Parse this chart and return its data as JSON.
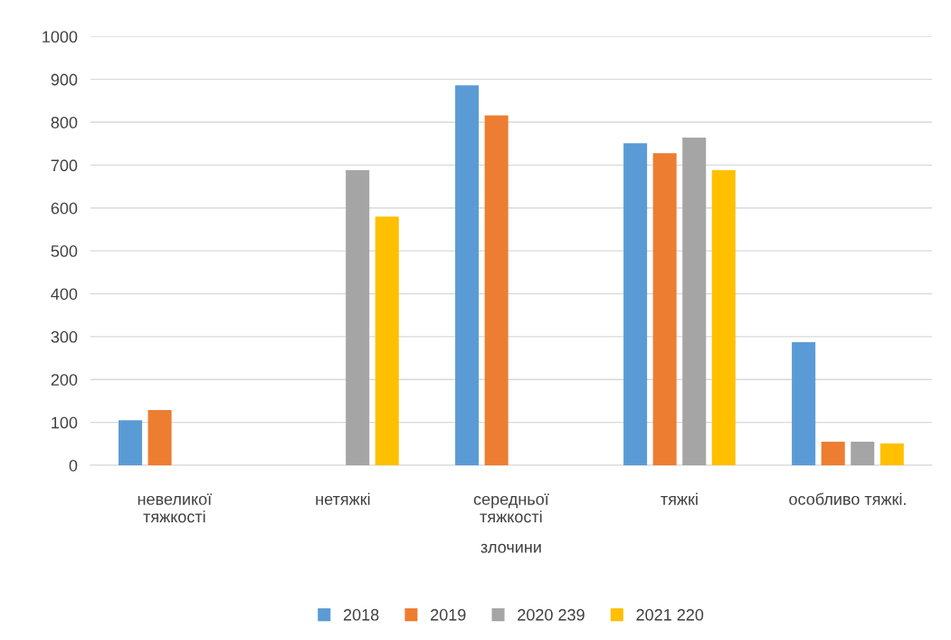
{
  "chart_data": {
    "type": "bar",
    "categories": [
      "невеликої\nтяжкості",
      "нетяжкі",
      "середньої\nтяжкості",
      "тяжкі",
      "особливо тяжкі."
    ],
    "xlabel": "злочини",
    "series": [
      {
        "name": "2018",
        "color": "#5b9bd5",
        "values": [
          105,
          null,
          886,
          751,
          287
        ]
      },
      {
        "name": "2019",
        "color": "#ed7d31",
        "values": [
          129,
          null,
          816,
          728,
          55
        ]
      },
      {
        "name": "2020 239",
        "color": "#a5a5a5",
        "values": [
          null,
          688,
          null,
          764,
          55
        ]
      },
      {
        "name": "2021 220",
        "color": "#ffc000",
        "values": [
          null,
          580,
          null,
          688,
          51
        ]
      }
    ],
    "ylim": [
      0,
      1000
    ],
    "yticks": [
      0,
      100,
      200,
      300,
      400,
      500,
      600,
      700,
      800,
      900,
      1000
    ],
    "grid": "y",
    "legend": "bottom"
  }
}
